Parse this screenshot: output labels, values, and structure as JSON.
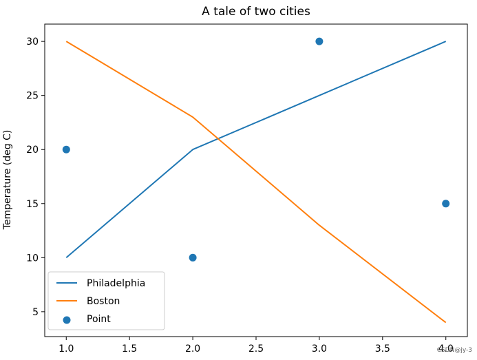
{
  "chart_data": {
    "type": "line",
    "title": "A tale of two cities",
    "xlabel": "",
    "ylabel": "Temperature (deg C)",
    "xlim": [
      0.83,
      4.17
    ],
    "ylim": [
      2.7,
      31.6
    ],
    "x_ticks": [
      1.0,
      1.5,
      2.0,
      2.5,
      3.0,
      3.5,
      4.0
    ],
    "x_tick_labels": [
      "1.0",
      "1.5",
      "2.0",
      "2.5",
      "3.0",
      "3.5",
      "4.0"
    ],
    "y_ticks": [
      5,
      10,
      15,
      20,
      25,
      30
    ],
    "y_tick_labels": [
      "5",
      "10",
      "15",
      "20",
      "25",
      "30"
    ],
    "grid": false,
    "legend_position": "lower-left",
    "series": [
      {
        "name": "Philadelphia",
        "kind": "line",
        "color": "#1f77b4",
        "x": [
          1,
          2,
          3,
          4
        ],
        "y": [
          10,
          20,
          25,
          30
        ]
      },
      {
        "name": "Boston",
        "kind": "line",
        "color": "#ff7f0e",
        "x": [
          1,
          2,
          3,
          4
        ],
        "y": [
          30,
          23,
          13,
          4
        ]
      },
      {
        "name": "Point",
        "kind": "scatter",
        "color": "#1f77b4",
        "x": [
          1,
          2,
          3,
          4
        ],
        "y": [
          20,
          10,
          30,
          15
        ]
      }
    ]
  },
  "watermark": "CSDN@jy-3"
}
